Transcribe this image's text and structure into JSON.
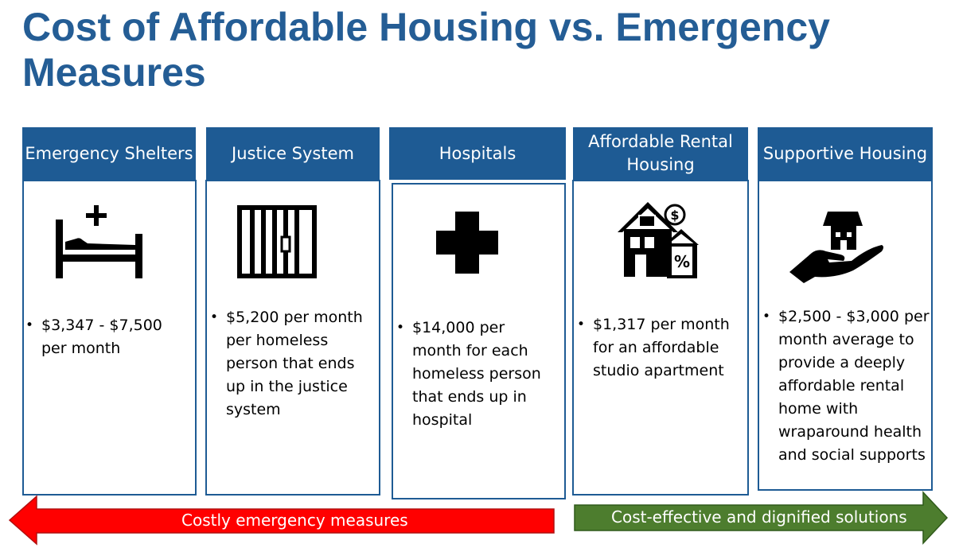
{
  "title": "Cost of Affordable Housing vs. Emergency Measures",
  "colors": {
    "header_blue": "#1e5b94",
    "title_blue": "#245d95",
    "red": "#ff0000",
    "green": "#4d7d2e"
  },
  "columns": [
    {
      "heading": "Emergency Shelters",
      "icon": "hospital-bed-icon",
      "text": "$3,347 - $7,500 per month"
    },
    {
      "heading": "Justice System",
      "icon": "jail-cell-icon",
      "text": "$5,200 per month per homeless person that ends up in the justice system"
    },
    {
      "heading": "Hospitals",
      "icon": "medical-cross-icon",
      "text": "$14,000 per month for each homeless person that ends up in hospital"
    },
    {
      "heading": "Affordable Rental Housing",
      "icon": "house-dollar-percent-icon",
      "text": "$1,317 per month for an affordable studio apartment"
    },
    {
      "heading": "Supportive Housing",
      "icon": "hand-holding-house-icon",
      "text": "$2,500 - $3,000 per month average to provide a deeply affordable rental home with wraparound health and social supports"
    }
  ],
  "arrows": {
    "left_label": "Costly emergency measures",
    "right_label": "Cost-effective and dignified solutions"
  }
}
